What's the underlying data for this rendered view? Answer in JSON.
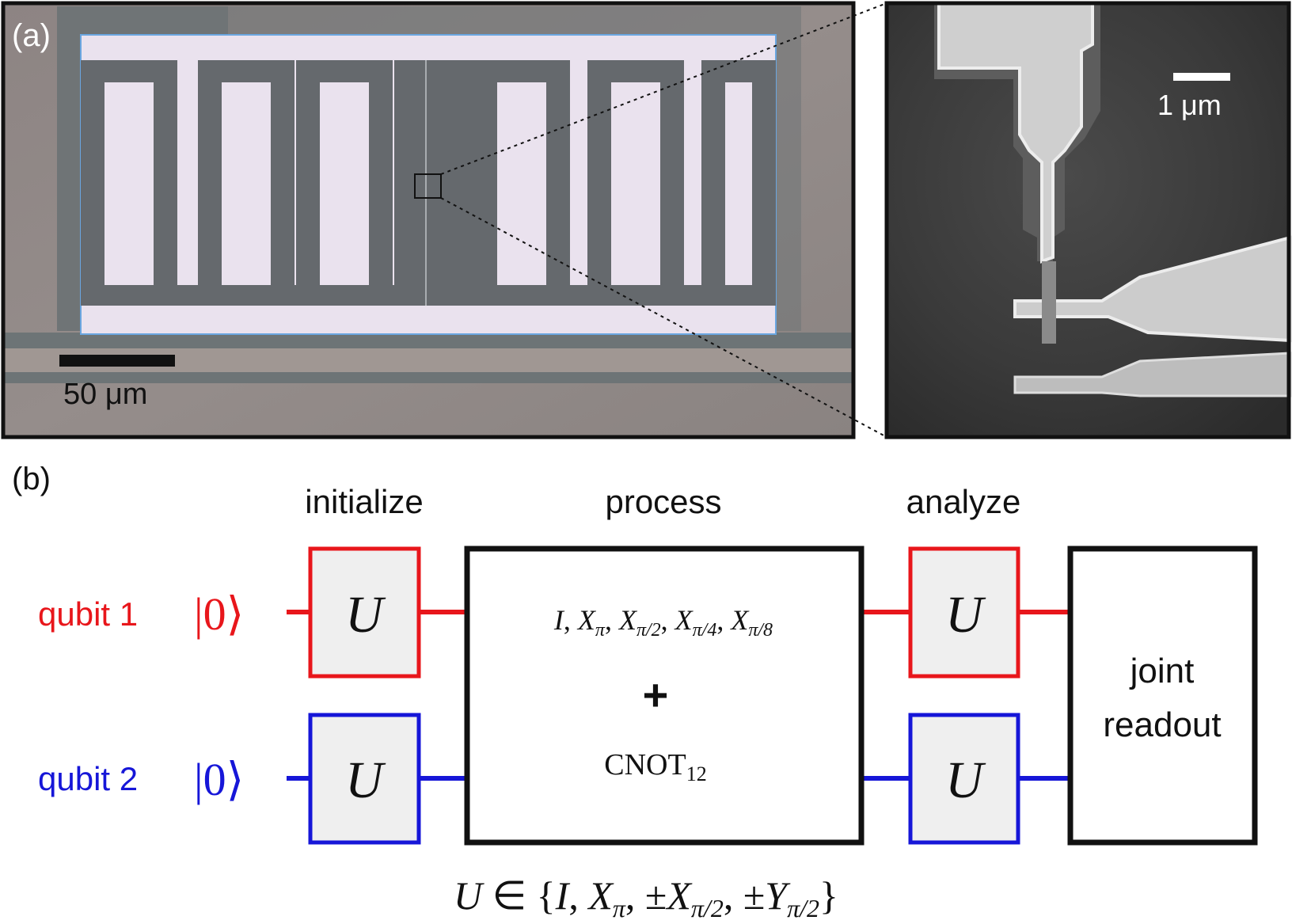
{
  "panel_a": {
    "label": "(a)",
    "optical_scalebar_label": "50 μm",
    "sem_scalebar_label": "1 μm"
  },
  "panel_b": {
    "label": "(b)",
    "headers": {
      "initialize": "initialize",
      "process": "process",
      "analyze": "analyze"
    },
    "qubit1": {
      "label": "qubit 1",
      "state": "|0⟩",
      "color": "#e8161b"
    },
    "qubit2": {
      "label": "qubit 2",
      "state": "|0⟩",
      "color": "#1616d8"
    },
    "gate_symbol": "U",
    "process_box": {
      "line1": {
        "I": "I",
        "X": "X",
        "pi": "π",
        "pi2": "π/2",
        "pi4": "π/4",
        "pi8": "π/8",
        "sep": ", "
      },
      "plus": "+",
      "cnot": "CNOT",
      "cnot_sub": "12"
    },
    "readout": {
      "line1": "joint",
      "line2": "readout"
    },
    "caption": {
      "U": "U",
      "in": "∈",
      "open": "{",
      "I": "I",
      "X": "X",
      "pi": "π",
      "pm": "±",
      "pi2": "π/2",
      "Y": "Y",
      "close": "}",
      "comma": ", "
    }
  },
  "colors": {
    "box_fill": "#efefef",
    "optical_bg": "#8e8685",
    "optical_metal": "#ece4ef",
    "sem_bg": "#3e3e3e",
    "sem_metal": "#d6d6d6"
  }
}
